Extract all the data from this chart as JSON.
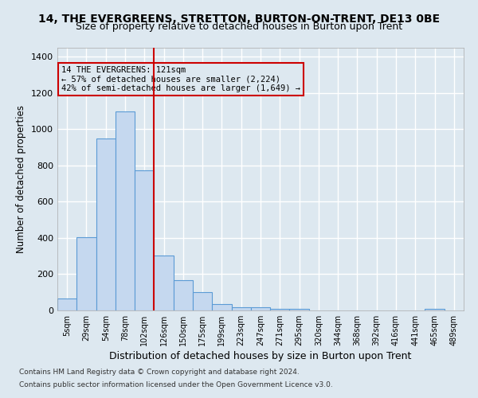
{
  "title": "14, THE EVERGREENS, STRETTON, BURTON-ON-TRENT, DE13 0BE",
  "subtitle": "Size of property relative to detached houses in Burton upon Trent",
  "xlabel": "Distribution of detached houses by size in Burton upon Trent",
  "ylabel": "Number of detached properties",
  "footnote1": "Contains HM Land Registry data © Crown copyright and database right 2024.",
  "footnote2": "Contains public sector information licensed under the Open Government Licence v3.0.",
  "bar_labels": [
    "5sqm",
    "29sqm",
    "54sqm",
    "78sqm",
    "102sqm",
    "126sqm",
    "150sqm",
    "175sqm",
    "199sqm",
    "223sqm",
    "247sqm",
    "271sqm",
    "295sqm",
    "320sqm",
    "344sqm",
    "368sqm",
    "392sqm",
    "416sqm",
    "441sqm",
    "465sqm",
    "489sqm"
  ],
  "bar_values": [
    65,
    405,
    950,
    1100,
    775,
    305,
    165,
    100,
    35,
    18,
    18,
    10,
    10,
    0,
    0,
    0,
    0,
    0,
    0,
    8,
    0
  ],
  "bar_color": "#c5d8ef",
  "bar_edge_color": "#5b9bd5",
  "vline_x": 4.5,
  "vline_color": "#cc0000",
  "annotation_text": "14 THE EVERGREENS: 121sqm\n← 57% of detached houses are smaller (2,224)\n42% of semi-detached houses are larger (1,649) →",
  "annotation_box_color": "#cc0000",
  "ylim": [
    0,
    1450
  ],
  "yticks": [
    0,
    200,
    400,
    600,
    800,
    1000,
    1200,
    1400
  ],
  "background_color": "#dde8f0",
  "grid_color": "#ffffff",
  "title_fontsize": 10,
  "subtitle_fontsize": 9,
  "xlabel_fontsize": 9,
  "ylabel_fontsize": 8.5
}
